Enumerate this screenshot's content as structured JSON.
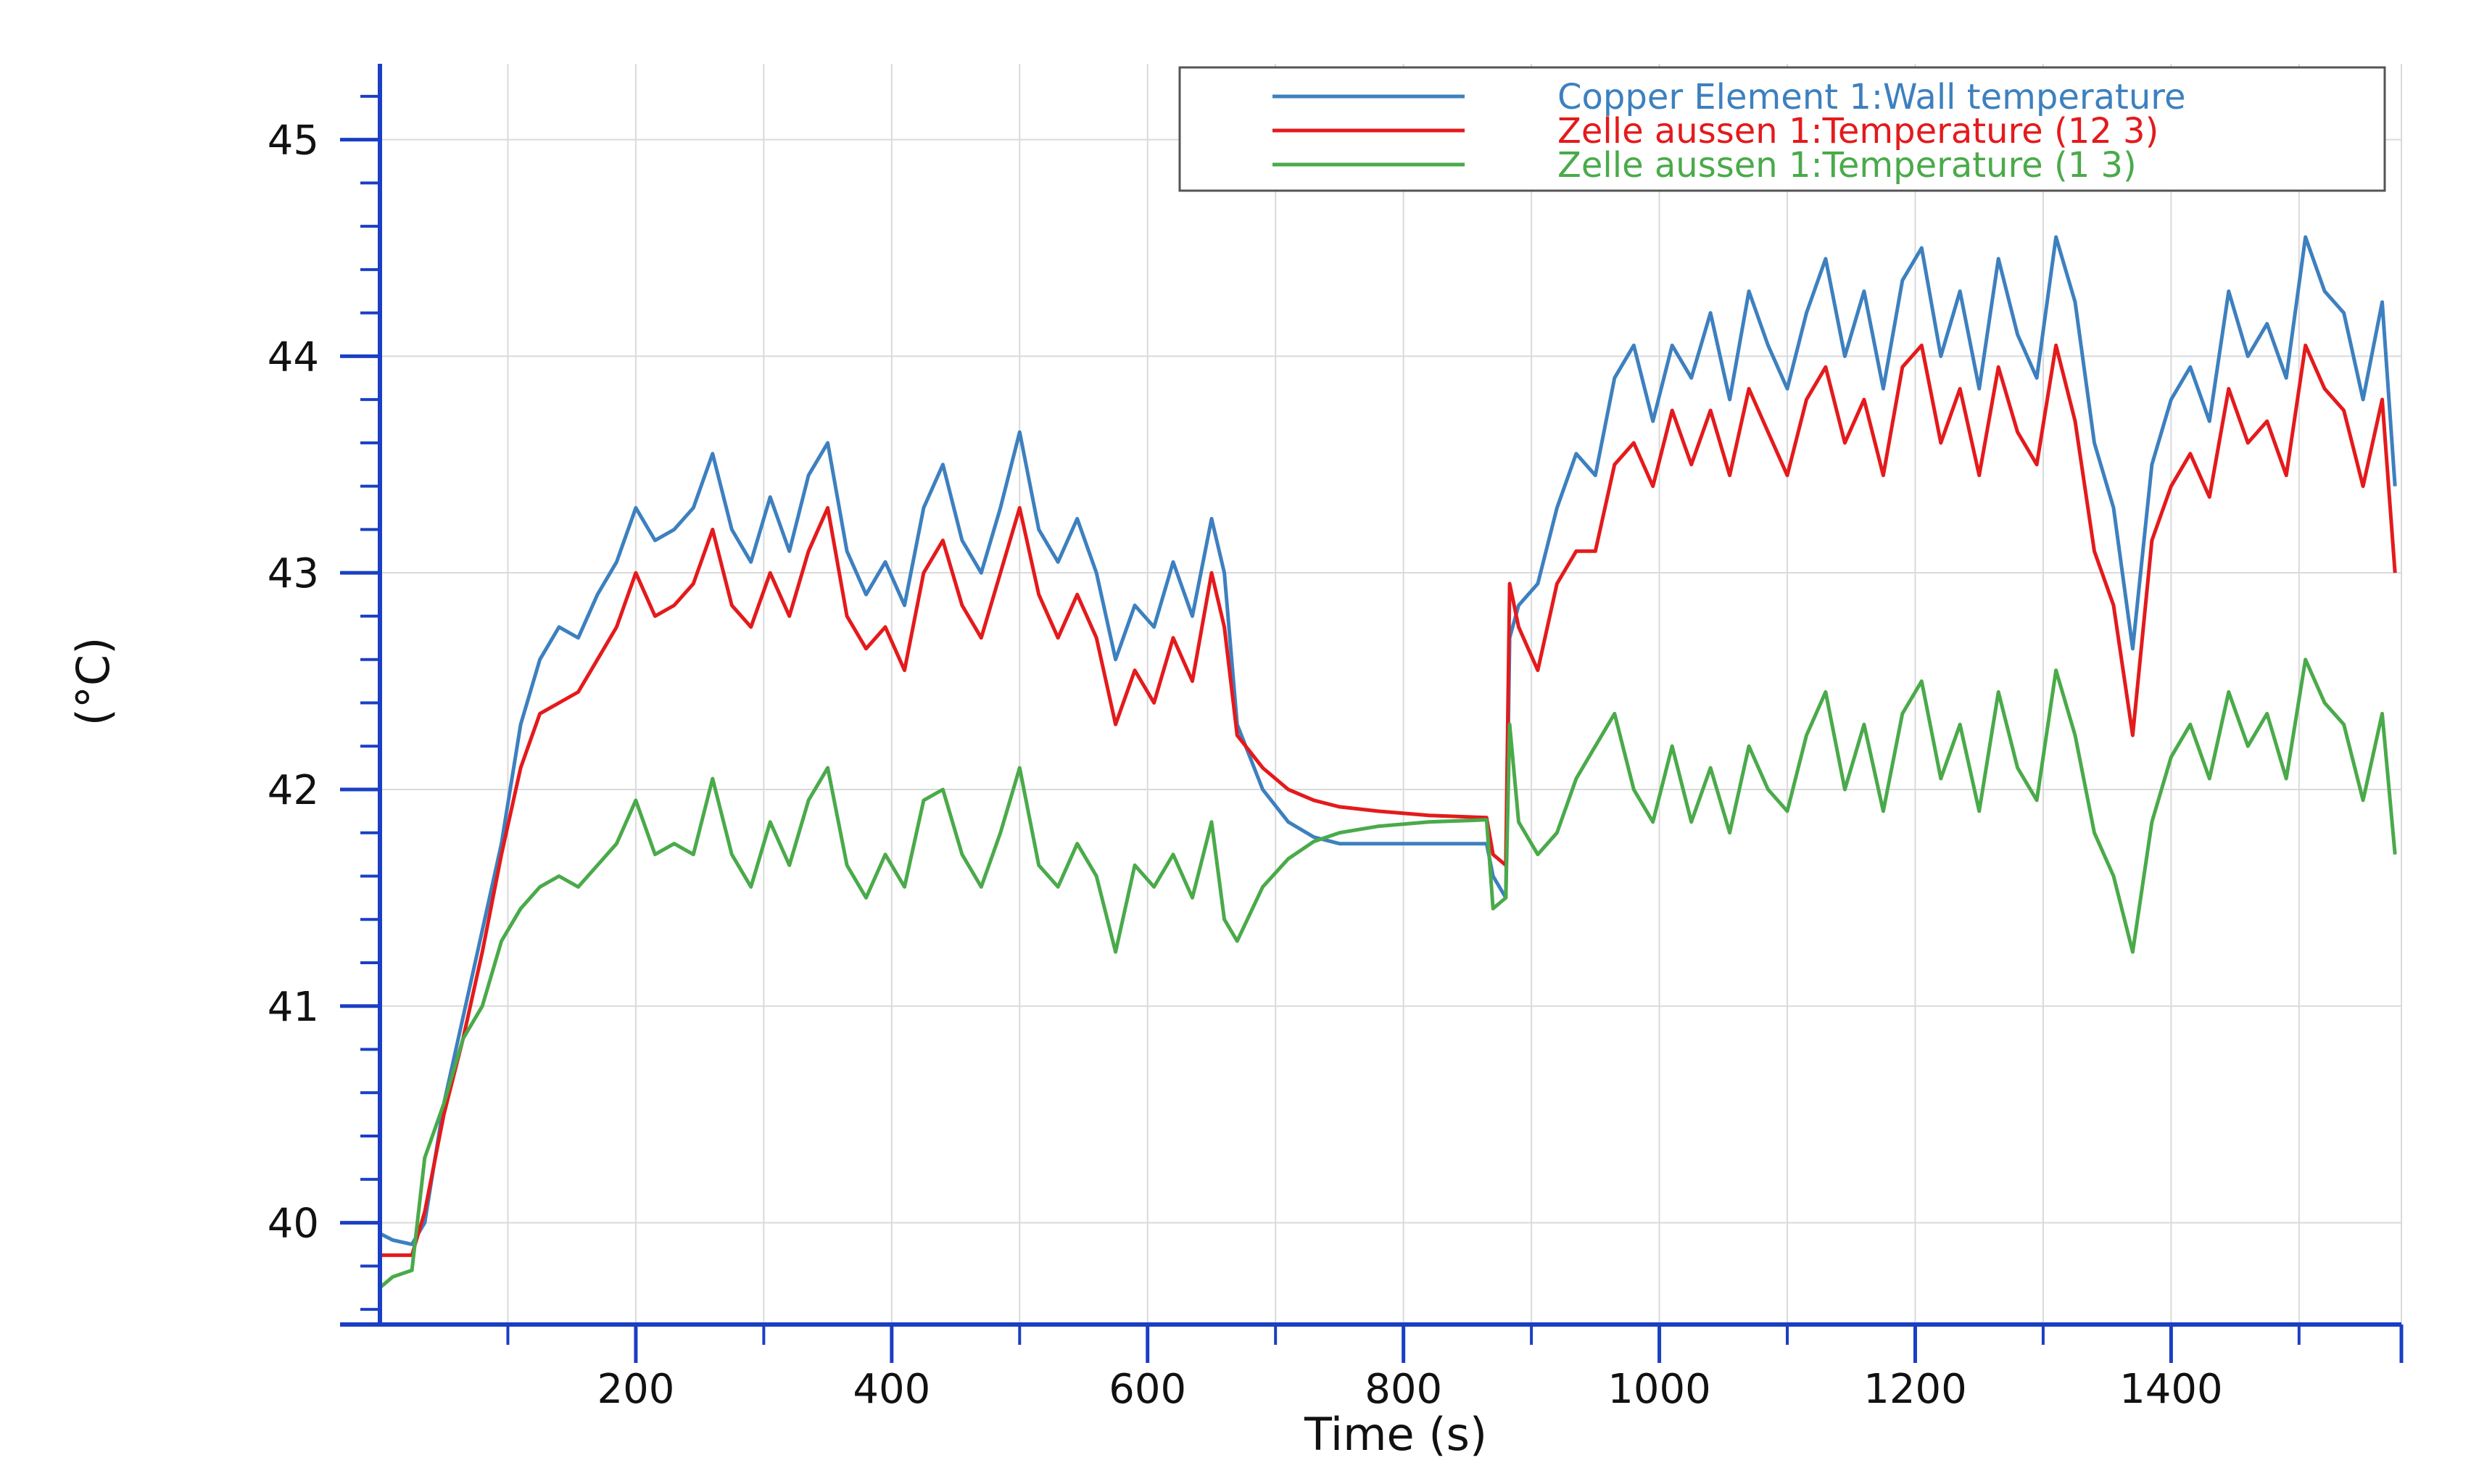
{
  "chart_data": {
    "type": "line",
    "title": "",
    "xlabel": "Time (s)",
    "ylabel": "(°C)",
    "xlim": [
      0,
      1580
    ],
    "ylim": [
      39.53,
      45.35
    ],
    "xticks": [
      200,
      400,
      600,
      800,
      1000,
      1200,
      1400
    ],
    "xtick_labels": [
      "200",
      "400",
      "600",
      "800",
      "1000",
      "1200",
      "1400"
    ],
    "yticks": [
      40,
      41,
      42,
      43,
      44,
      45
    ],
    "ytick_labels": [
      "40",
      "41",
      "42",
      "43",
      "44",
      "45"
    ],
    "grid": true,
    "legend_position": "top-right",
    "series": [
      {
        "name": "Copper Element 1:Wall temperature",
        "color": "#3d80bf",
        "x": [
          0,
          10,
          25,
          35,
          50,
          65,
          80,
          95,
          110,
          125,
          140,
          155,
          170,
          185,
          200,
          215,
          230,
          245,
          260,
          275,
          290,
          305,
          320,
          335,
          350,
          365,
          380,
          395,
          410,
          425,
          440,
          455,
          470,
          485,
          500,
          515,
          530,
          545,
          560,
          575,
          590,
          605,
          620,
          635,
          650,
          660,
          670,
          690,
          710,
          730,
          750,
          780,
          820,
          865,
          870,
          880,
          883,
          890,
          905,
          920,
          935,
          950,
          965,
          980,
          995,
          1010,
          1025,
          1040,
          1055,
          1070,
          1085,
          1100,
          1115,
          1130,
          1145,
          1160,
          1175,
          1190,
          1205,
          1220,
          1235,
          1250,
          1265,
          1280,
          1295,
          1310,
          1325,
          1340,
          1355,
          1370,
          1385,
          1400,
          1415,
          1430,
          1445,
          1460,
          1475,
          1490,
          1505,
          1520,
          1535,
          1550,
          1565,
          1575
        ],
        "y": [
          39.95,
          39.92,
          39.9,
          40.0,
          40.55,
          40.95,
          41.35,
          41.75,
          42.3,
          42.6,
          42.75,
          42.7,
          42.9,
          43.05,
          43.3,
          43.15,
          43.2,
          43.3,
          43.55,
          43.2,
          43.05,
          43.35,
          43.1,
          43.45,
          43.6,
          43.1,
          42.9,
          43.05,
          42.85,
          43.3,
          43.5,
          43.15,
          43.0,
          43.3,
          43.65,
          43.2,
          43.05,
          43.25,
          43.0,
          42.6,
          42.85,
          42.75,
          43.05,
          42.8,
          43.25,
          43.0,
          42.3,
          42.0,
          41.85,
          41.78,
          41.75,
          41.75,
          41.75,
          41.75,
          41.6,
          41.5,
          42.7,
          42.85,
          42.95,
          43.3,
          43.55,
          43.45,
          43.9,
          44.05,
          43.7,
          44.05,
          43.9,
          44.2,
          43.8,
          44.3,
          44.05,
          43.85,
          44.2,
          44.45,
          44.0,
          44.3,
          43.85,
          44.35,
          44.5,
          44.0,
          44.3,
          43.85,
          44.45,
          44.1,
          43.9,
          44.55,
          44.25,
          43.6,
          43.3,
          42.65,
          43.5,
          43.8,
          43.95,
          43.7,
          44.3,
          44.0,
          44.15,
          43.9,
          44.55,
          44.3,
          44.2,
          43.8,
          44.25,
          43.4
        ]
      },
      {
        "name": "Zelle aussen 1:Temperature (12 3)",
        "color": "#e41a1c",
        "x": [
          0,
          10,
          25,
          35,
          50,
          65,
          80,
          95,
          110,
          125,
          140,
          155,
          170,
          185,
          200,
          215,
          230,
          245,
          260,
          275,
          290,
          305,
          320,
          335,
          350,
          365,
          380,
          395,
          410,
          425,
          440,
          455,
          470,
          485,
          500,
          515,
          530,
          545,
          560,
          575,
          590,
          605,
          620,
          635,
          650,
          660,
          670,
          690,
          710,
          730,
          750,
          780,
          820,
          865,
          870,
          880,
          883,
          890,
          905,
          920,
          935,
          950,
          965,
          980,
          995,
          1010,
          1025,
          1040,
          1055,
          1070,
          1085,
          1100,
          1115,
          1130,
          1145,
          1160,
          1175,
          1190,
          1205,
          1220,
          1235,
          1250,
          1265,
          1280,
          1295,
          1310,
          1325,
          1340,
          1355,
          1370,
          1385,
          1400,
          1415,
          1430,
          1445,
          1460,
          1475,
          1490,
          1505,
          1520,
          1535,
          1550,
          1565,
          1575
        ],
        "y": [
          39.85,
          39.85,
          39.85,
          40.05,
          40.5,
          40.85,
          41.25,
          41.7,
          42.1,
          42.35,
          42.4,
          42.45,
          42.6,
          42.75,
          43.0,
          42.8,
          42.85,
          42.95,
          43.2,
          42.85,
          42.75,
          43.0,
          42.8,
          43.1,
          43.3,
          42.8,
          42.65,
          42.75,
          42.55,
          43.0,
          43.15,
          42.85,
          42.7,
          43.0,
          43.3,
          42.9,
          42.7,
          42.9,
          42.7,
          42.3,
          42.55,
          42.4,
          42.7,
          42.5,
          43.0,
          42.75,
          42.25,
          42.1,
          42.0,
          41.95,
          41.92,
          41.9,
          41.88,
          41.87,
          41.7,
          41.65,
          42.95,
          42.75,
          42.55,
          42.95,
          43.1,
          43.1,
          43.5,
          43.6,
          43.4,
          43.75,
          43.5,
          43.75,
          43.45,
          43.85,
          43.65,
          43.45,
          43.8,
          43.95,
          43.6,
          43.8,
          43.45,
          43.95,
          44.05,
          43.6,
          43.85,
          43.45,
          43.95,
          43.65,
          43.5,
          44.05,
          43.7,
          43.1,
          42.85,
          42.25,
          43.15,
          43.4,
          43.55,
          43.35,
          43.85,
          43.6,
          43.7,
          43.45,
          44.05,
          43.85,
          43.75,
          43.4,
          43.8,
          43.0
        ]
      },
      {
        "name": "Zelle aussen 1:Temperature (1 3)",
        "color": "#4aaa4a",
        "x": [
          0,
          10,
          25,
          35,
          50,
          65,
          80,
          95,
          110,
          125,
          140,
          155,
          170,
          185,
          200,
          215,
          230,
          245,
          260,
          275,
          290,
          305,
          320,
          335,
          350,
          365,
          380,
          395,
          410,
          425,
          440,
          455,
          470,
          485,
          500,
          515,
          530,
          545,
          560,
          575,
          590,
          605,
          620,
          635,
          650,
          660,
          670,
          690,
          710,
          730,
          750,
          780,
          820,
          865,
          870,
          880,
          883,
          890,
          905,
          920,
          935,
          950,
          965,
          980,
          995,
          1010,
          1025,
          1040,
          1055,
          1070,
          1085,
          1100,
          1115,
          1130,
          1145,
          1160,
          1175,
          1190,
          1205,
          1220,
          1235,
          1250,
          1265,
          1280,
          1295,
          1310,
          1325,
          1340,
          1355,
          1370,
          1385,
          1400,
          1415,
          1430,
          1445,
          1460,
          1475,
          1490,
          1505,
          1520,
          1535,
          1550,
          1565,
          1575
        ],
        "y": [
          39.7,
          39.75,
          39.78,
          40.3,
          40.55,
          40.85,
          41.0,
          41.3,
          41.45,
          41.55,
          41.6,
          41.55,
          41.65,
          41.75,
          41.95,
          41.7,
          41.75,
          41.7,
          42.05,
          41.7,
          41.55,
          41.85,
          41.65,
          41.95,
          42.1,
          41.65,
          41.5,
          41.7,
          41.55,
          41.95,
          42.0,
          41.7,
          41.55,
          41.8,
          42.1,
          41.65,
          41.55,
          41.75,
          41.6,
          41.25,
          41.65,
          41.55,
          41.7,
          41.5,
          41.85,
          41.4,
          41.3,
          41.55,
          41.68,
          41.76,
          41.8,
          41.83,
          41.85,
          41.86,
          41.45,
          41.5,
          42.3,
          41.85,
          41.7,
          41.8,
          42.05,
          42.2,
          42.35,
          42.0,
          41.85,
          42.2,
          41.85,
          42.1,
          41.8,
          42.2,
          42.0,
          41.9,
          42.25,
          42.45,
          42.0,
          42.3,
          41.9,
          42.35,
          42.5,
          42.05,
          42.3,
          41.9,
          42.45,
          42.1,
          41.95,
          42.55,
          42.25,
          41.8,
          41.6,
          41.25,
          41.85,
          42.15,
          42.3,
          42.05,
          42.45,
          42.2,
          42.35,
          42.05,
          42.6,
          42.4,
          42.3,
          41.95,
          42.35,
          41.7
        ]
      }
    ]
  }
}
